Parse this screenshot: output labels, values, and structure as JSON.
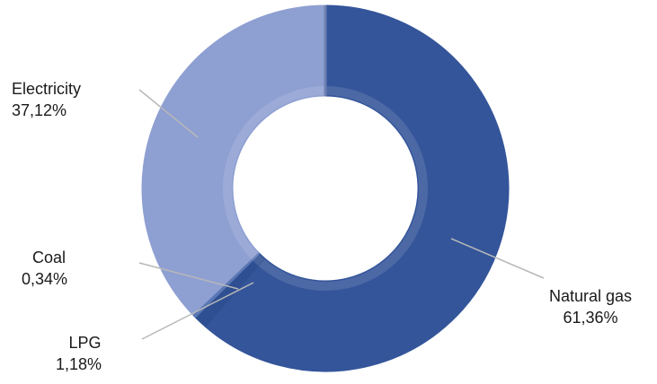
{
  "chart_data": {
    "type": "pie",
    "variant": "donut",
    "title": "",
    "start_angle_deg": 0,
    "direction": "clockwise",
    "slices": [
      {
        "name": "Natural gas",
        "value": 61.36,
        "value_label": "61,36%",
        "color": "#34559a"
      },
      {
        "name": "LPG",
        "value": 1.18,
        "value_label": "1,18%",
        "color": "#2e4f91"
      },
      {
        "name": "Coal",
        "value": 0.34,
        "value_label": "0,34%",
        "color": "#5a77b4"
      },
      {
        "name": "Electricity",
        "value": 37.12,
        "value_label": "37,12%",
        "color": "#8e9fd2"
      }
    ],
    "legend": "none",
    "leader_line_color": "#b8b8b8"
  }
}
